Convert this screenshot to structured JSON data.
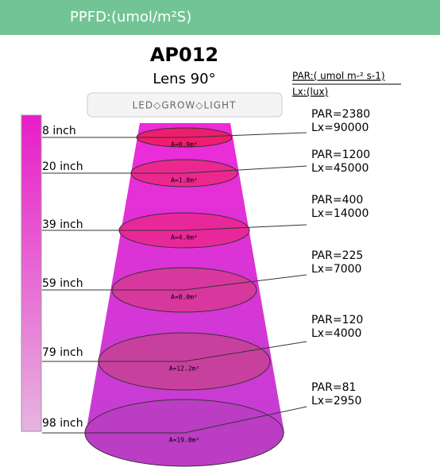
{
  "header": {
    "title": "PPFD:(umol/m²S)"
  },
  "product": {
    "model": "AP012",
    "lens": "Lens 90°"
  },
  "legend": {
    "par": "PAR:( umol m-² s-1)",
    "lx": "Lx:(lux)"
  },
  "lamp": {
    "label": "LED◇GROW◇LIGHT"
  },
  "levels": [
    {
      "height": "8 inch",
      "area": "A=0.9m²",
      "par": "PAR=2380",
      "lx": "Lx=90000"
    },
    {
      "height": "20 inch",
      "area": "A=1.8m²",
      "par": "PAR=1200",
      "lx": "Lx=45000"
    },
    {
      "height": "39 inch",
      "area": "A=4.0m²",
      "par": "PAR=400",
      "lx": "Lx=14000"
    },
    {
      "height": "59 inch",
      "area": "A=8.0m²",
      "par": "PAR=225",
      "lx": "Lx=7000"
    },
    {
      "height": "79 inch",
      "area": "A=12.2m²",
      "par": "PAR=120",
      "lx": "Lx=4000"
    },
    {
      "height": "98 inch",
      "area": "A=19.0m²",
      "par": "PAR=81",
      "lx": "Lx=2950"
    }
  ]
}
